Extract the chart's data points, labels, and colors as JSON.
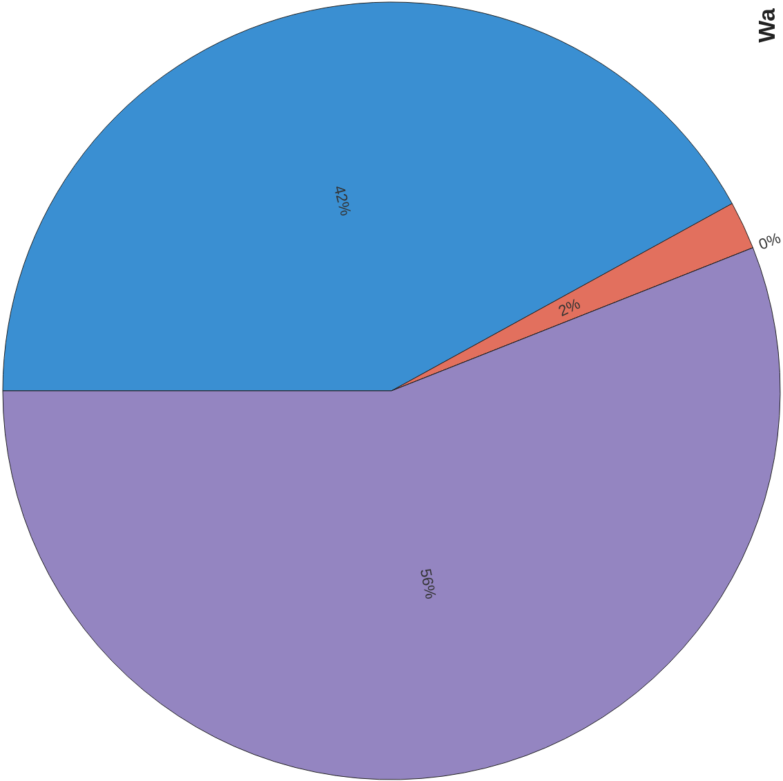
{
  "chart_data": {
    "type": "pie",
    "title": "Wa",
    "categories": [
      null,
      null,
      null,
      null
    ],
    "values": [
      42,
      2,
      0,
      56
    ],
    "colors": [
      "#3a8fd2",
      "#e2705e",
      "#b8d86e",
      "#9485c1"
    ],
    "value_labels": [
      "42%",
      "2%",
      "0%",
      "56%"
    ]
  }
}
